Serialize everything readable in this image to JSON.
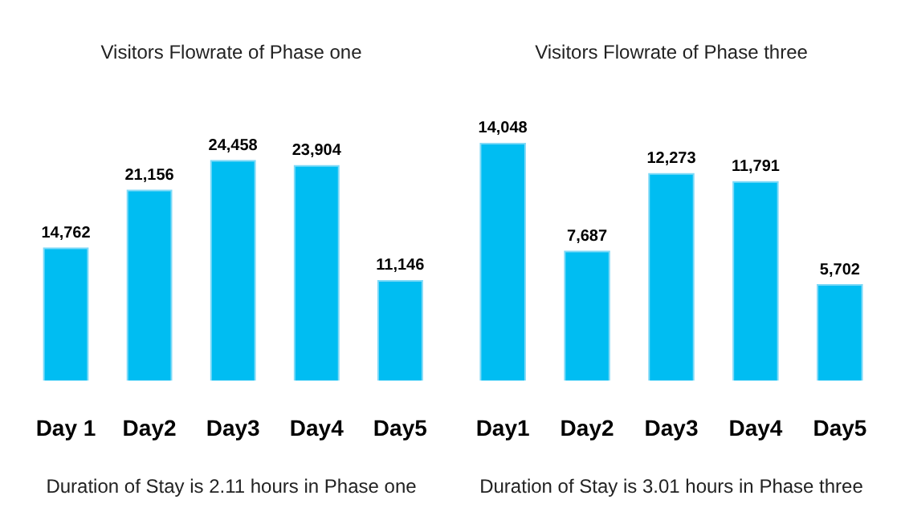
{
  "chart_data": [
    {
      "type": "bar",
      "title": "Visitors Flowrate of Phase one",
      "categories": [
        "Day 1",
        "Day2",
        "Day3",
        "Day4",
        "Day5"
      ],
      "values": [
        14762,
        21156,
        24458,
        23904,
        11146
      ],
      "value_labels": [
        "14,762",
        "21,156",
        "24,458",
        "23,904",
        "11,146"
      ],
      "color": "#00bdf2",
      "annotations": [
        "Duration of Stay is 2.11 hours in Phase one"
      ]
    },
    {
      "type": "bar",
      "title": "Visitors Flowrate of Phase three",
      "categories": [
        "Day1",
        "Day2",
        "Day3",
        "Day4",
        "Day5"
      ],
      "values": [
        14048,
        7687,
        12273,
        11791,
        5702
      ],
      "value_labels": [
        "14,048",
        "7,687",
        "12,273",
        "11,791",
        "5,702"
      ],
      "color": "#00bdf2",
      "annotations": [
        "Duration of Stay is 3.01 hours in Phase three"
      ]
    }
  ]
}
